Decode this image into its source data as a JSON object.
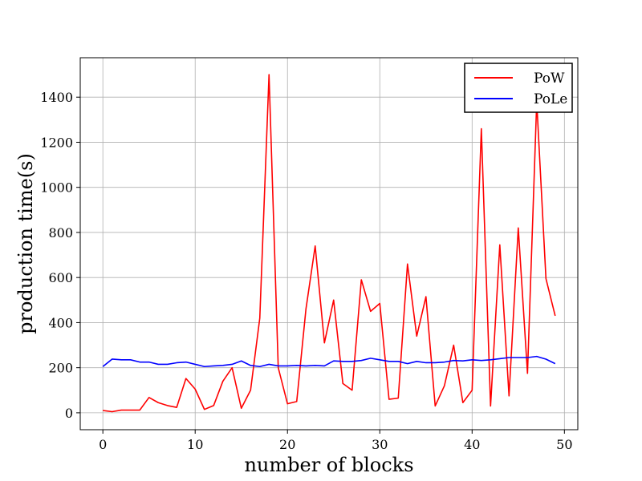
{
  "chart_data": {
    "type": "line",
    "title": "",
    "xlabel": "number of blocks",
    "ylabel": "production time(s)",
    "xlim": [
      -2.45,
      51.45
    ],
    "ylim": [
      -75,
      1575
    ],
    "xticks": [
      0,
      10,
      20,
      30,
      40,
      50
    ],
    "xtick_labels": [
      "0",
      "10",
      "20",
      "30",
      "40",
      "50"
    ],
    "yticks": [
      0,
      200,
      400,
      600,
      800,
      1000,
      1200,
      1400
    ],
    "ytick_labels": [
      "0",
      "200",
      "400",
      "600",
      "800",
      "1000",
      "1200",
      "1400"
    ],
    "grid": true,
    "legend": "top-right",
    "x": [
      0,
      1,
      2,
      3,
      4,
      5,
      6,
      7,
      8,
      9,
      10,
      11,
      12,
      13,
      14,
      15,
      16,
      17,
      18,
      19,
      20,
      21,
      22,
      23,
      24,
      25,
      26,
      27,
      28,
      29,
      30,
      31,
      32,
      33,
      34,
      35,
      36,
      37,
      38,
      39,
      40,
      41,
      42,
      43,
      44,
      45,
      46,
      47,
      48,
      49
    ],
    "series": [
      {
        "name": "PoW",
        "color": "#ff0000",
        "values": [
          10,
          5,
          12,
          12,
          12,
          68,
          45,
          32,
          24,
          152,
          105,
          15,
          32,
          140,
          200,
          20,
          100,
          420,
          1500,
          200,
          40,
          50,
          460,
          740,
          310,
          500,
          130,
          100,
          590,
          450,
          485,
          60,
          65,
          660,
          340,
          515,
          30,
          120,
          300,
          45,
          100,
          1260,
          30,
          745,
          75,
          820,
          175,
          1380,
          595,
          430
        ]
      },
      {
        "name": "PoLe",
        "color": "#0000ff",
        "values": [
          205,
          238,
          235,
          235,
          225,
          225,
          215,
          215,
          222,
          225,
          215,
          205,
          208,
          210,
          215,
          230,
          210,
          205,
          215,
          208,
          208,
          210,
          208,
          210,
          208,
          230,
          228,
          228,
          232,
          242,
          235,
          228,
          228,
          218,
          228,
          222,
          222,
          225,
          232,
          230,
          235,
          232,
          235,
          240,
          245,
          245,
          245,
          250,
          238,
          218
        ]
      }
    ]
  }
}
